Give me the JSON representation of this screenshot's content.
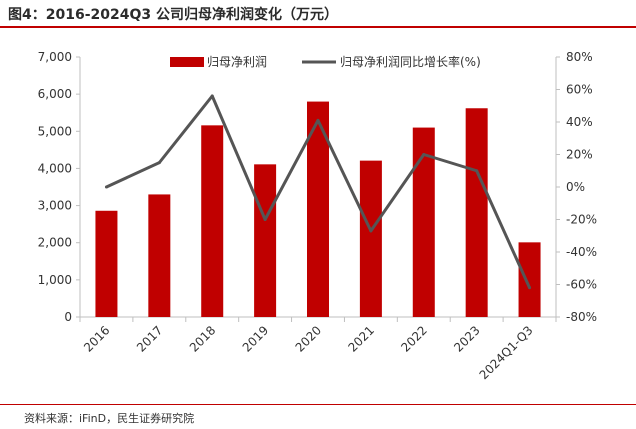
{
  "header": {
    "title": "图4：2016-2024Q3 公司归母净利润变化（万元）"
  },
  "footer": {
    "source": "资料来源：iFinD，民生证券研究院"
  },
  "colors": {
    "bar": "#c00000",
    "line": "#555555",
    "rule": "#c00000",
    "axis": "#bfbfbf"
  },
  "chart_data": {
    "type": "bar",
    "categories": [
      "2016",
      "2017",
      "2018",
      "2019",
      "2020",
      "2021",
      "2022",
      "2023",
      "2024Q1-Q3"
    ],
    "series": [
      {
        "name": "归母净利润",
        "type": "bar",
        "axis": "left",
        "values": [
          2860,
          3300,
          5160,
          4110,
          5800,
          4210,
          5100,
          5620,
          2010
        ]
      },
      {
        "name": "归母净利润同比增长率(%)",
        "type": "line",
        "axis": "right",
        "values": [
          0,
          15,
          56,
          -20,
          41,
          -27,
          20,
          10,
          -62
        ]
      }
    ],
    "y_left": {
      "min": 0,
      "max": 7000,
      "ticks": [
        "0",
        "1,000",
        "2,000",
        "3,000",
        "4,000",
        "5,000",
        "6,000",
        "7,000"
      ]
    },
    "y_right": {
      "min": -80,
      "max": 80,
      "ticks": [
        "-80%",
        "-60%",
        "-40%",
        "-20%",
        "0%",
        "20%",
        "40%",
        "60%",
        "80%"
      ]
    },
    "legend": {
      "position": "top-center"
    },
    "grid": false
  }
}
